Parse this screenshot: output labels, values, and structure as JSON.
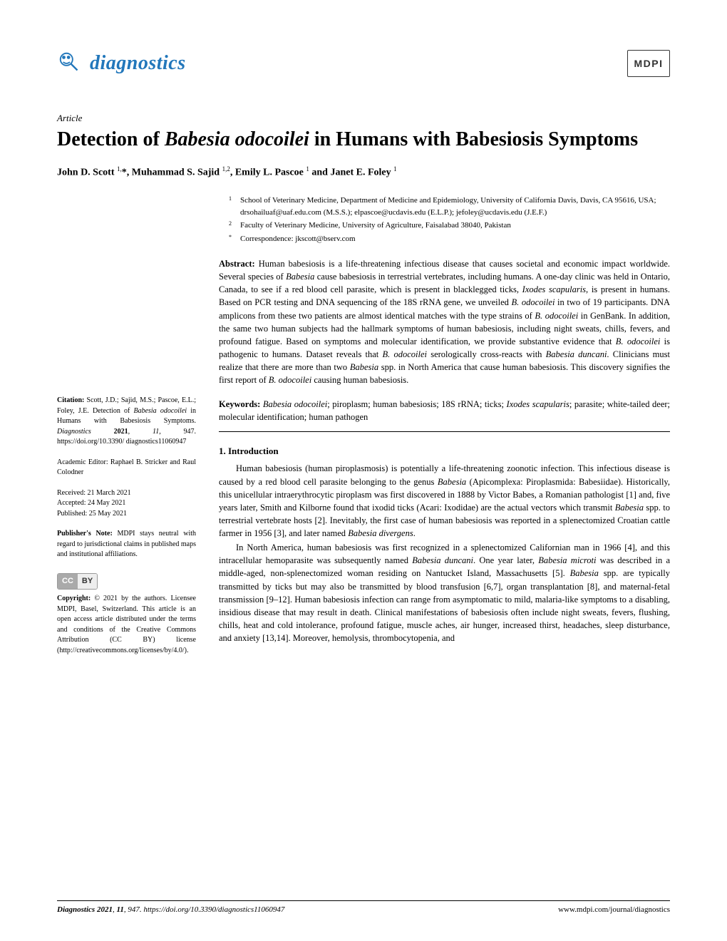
{
  "journal": {
    "name": "diagnostics",
    "publisher_logo": "MDPI"
  },
  "article": {
    "type": "Article",
    "title_prefix": "Detection of ",
    "title_italic": "Babesia odocoilei",
    "title_suffix": " in Humans with Babesiosis Symptoms",
    "authors_html": "John D. Scott <sup>1,</sup>*, Muhammad S. Sajid <sup>1,2</sup>, Emily L. Pascoe <sup>1</sup> and Janet E. Foley <sup>1</sup>"
  },
  "affiliations": [
    {
      "sup": "1",
      "text": "School of Veterinary Medicine, Department of Medicine and Epidemiology, University of California Davis, Davis, CA 95616, USA; drsohailuaf@uaf.edu.com (M.S.S.); elpascoe@ucdavis.edu (E.L.P.); jefoley@ucdavis.edu (J.E.F.)"
    },
    {
      "sup": "2",
      "text": "Faculty of Veterinary Medicine, University of Agriculture, Faisalabad 38040, Pakistan"
    },
    {
      "sup": "*",
      "text": "Correspondence: jkscott@bserv.com"
    }
  ],
  "abstract": {
    "label": "Abstract:",
    "text_html": "Human babesiosis is a life-threatening infectious disease that causes societal and economic impact worldwide. Several species of <em>Babesia</em> cause babesiosis in terrestrial vertebrates, including humans. A one-day clinic was held in Ontario, Canada, to see if a red blood cell parasite, which is present in blacklegged ticks, <em>Ixodes scapularis</em>, is present in humans. Based on PCR testing and DNA sequencing of the 18S rRNA gene, we unveiled <em>B. odocoilei</em> in two of 19 participants. DNA amplicons from these two patients are almost identical matches with the type strains of <em>B. odocoilei</em> in GenBank. In addition, the same two human subjects had the hallmark symptoms of human babesiosis, including night sweats, chills, fevers, and profound fatigue. Based on symptoms and molecular identification, we provide substantive evidence that <em>B. odocoilei</em> is pathogenic to humans. Dataset reveals that <em>B. odocoilei</em> serologically cross-reacts with <em>Babesia duncani</em>. Clinicians must realize that there are more than two <em>Babesia</em> spp. in North America that cause human babesiosis. This discovery signifies the first report of <em>B. odocoilei</em> causing human babesiosis."
  },
  "keywords": {
    "label": "Keywords:",
    "text_html": "<em>Babesia odocoilei</em>; piroplasm; human babesiosis; 18S rRNA; ticks; <em>Ixodes scapularis</em>; parasite; white-tailed deer; molecular identification; human pathogen"
  },
  "sidebar": {
    "citation_html": "<strong>Citation:</strong> Scott, J.D.; Sajid, M.S.; Pascoe, E.L.; Foley, J.E. Detection of <em>Babesia odocoilei</em> in Humans with Babesiosis Symptoms. <em>Diagnostics</em> <strong>2021</strong>, <em>11</em>, 947. https://doi.org/10.3390/ diagnostics11060947",
    "editor": "Academic Editor: Raphael B. Stricker and Raul Colodner",
    "dates_html": "Received: 21 March 2021<br>Accepted: 24 May 2021<br>Published: 25 May 2021",
    "publishers_note_html": "<strong>Publisher's Note:</strong> MDPI stays neutral with regard to jurisdictional claims in published maps and institutional affiliations.",
    "copyright_html": "<strong>Copyright:</strong> © 2021 by the authors. Licensee MDPI, Basel, Switzerland. This article is an open access article distributed under the terms and conditions of the Creative Commons Attribution (CC BY) license (http://creativecommons.org/licenses/by/4.0/)."
  },
  "introduction": {
    "heading": "1. Introduction",
    "para1_html": "Human babesiosis (human piroplasmosis) is potentially a life-threatening zoonotic infection. This infectious disease is caused by a red blood cell parasite belonging to the genus <em>Babesia</em> (Apicomplexa: Piroplasmida: Babesiidae). Historically, this unicellular intraerythrocytic piroplasm was first discovered in 1888 by Victor Babes, a Romanian pathologist [1] and, five years later, Smith and Kilborne found that ixodid ticks (Acari: Ixodidae) are the actual vectors which transmit <em>Babesia</em> spp. to terrestrial vertebrate hosts [2]. Inevitably, the first case of human babesiosis was reported in a splenectomized Croatian cattle farmer in 1956 [3], and later named <em>Babesia divergens</em>.",
    "para2_html": "In North America, human babesiosis was first recognized in a splenectomized Californian man in 1966 [4], and this intracellular hemoparasite was subsequently named <em>Babesia duncani</em>. One year later, <em>Babesia microti</em> was described in a middle-aged, non-splenectomized woman residing on Nantucket Island, Massachusetts [5]. <em>Babesia</em> spp. are typically transmitted by ticks but may also be transmitted by blood transfusion [6,7], organ transplantation [8], and maternal-fetal transmission [9–12]. Human babesiosis infection can range from asymptomatic to mild, malaria-like symptoms to a disabling, insidious disease that may result in death. Clinical manifestations of babesiosis often include night sweats, fevers, flushing, chills, heat and cold intolerance, profound fatigue, muscle aches, air hunger, increased thirst, headaches, sleep disturbance, and anxiety [13,14]. Moreover, hemolysis, thrombocytopenia, and"
  },
  "footer": {
    "left_html": "<em>Diagnostics</em> <strong>2021</strong>, <em>11</em>, 947. https://doi.org/10.3390/diagnostics11060947",
    "right": "www.mdpi.com/journal/diagnostics"
  }
}
